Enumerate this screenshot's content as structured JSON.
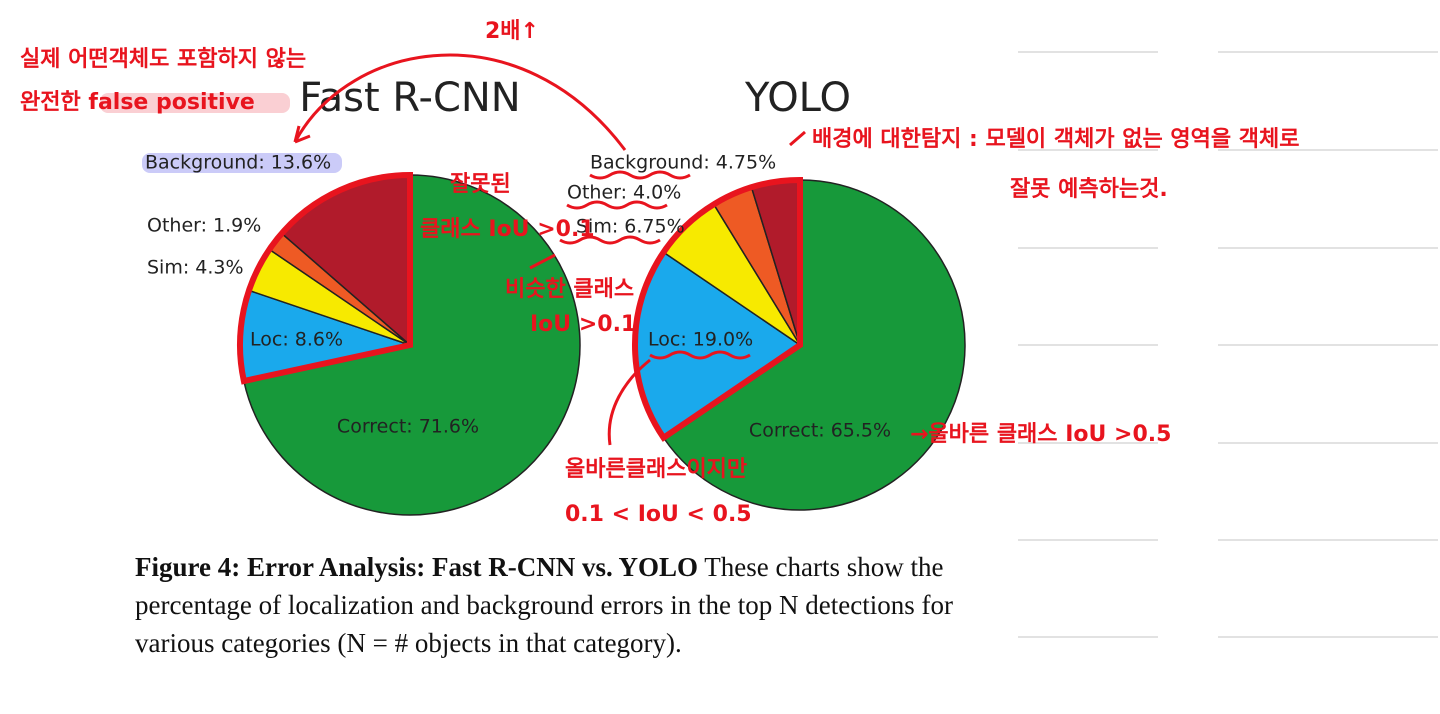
{
  "chart_data": [
    {
      "type": "pie",
      "title": "Fast R-CNN",
      "labels": [
        "Correct: 71.6%",
        "Loc: 8.6%",
        "Sim: 4.3%",
        "Other: 1.9%",
        "Background: 13.6%"
      ],
      "values": [
        71.6,
        8.6,
        4.3,
        1.9,
        13.6
      ],
      "colors": [
        "#17993a",
        "#1aa9ec",
        "#f7ea00",
        "#ee5a24",
        "#b11b2b"
      ]
    },
    {
      "type": "pie",
      "title": "YOLO",
      "labels": [
        "Correct: 65.5%",
        "Loc: 19.0%",
        "Sim: 6.75%",
        "Other: 4.0%",
        "Background: 4.75%"
      ],
      "values": [
        65.5,
        19.0,
        6.75,
        4.0,
        4.75
      ],
      "colors": [
        "#17993a",
        "#1aa9ec",
        "#f7ea00",
        "#ee5a24",
        "#b11b2b"
      ]
    }
  ],
  "caption": {
    "bold": "Figure 4:  Error Analysis: Fast R-CNN vs.  YOLO",
    "text": " These charts show the percentage of localization and background errors in the top N detections for various categories (N = # objects in that category)."
  },
  "notes": [
    "실제 어떤객체도 포함하지 않는",
    "완전한 false positive",
    "2배↑",
    "배경에 대한탐지 : 모델이 객체가 없는 영역을 객체로",
    "잘못 예측하는것.",
    "잘못된",
    "클래스 IoU >0.1",
    "비슷한 클래스",
    "IoU >0.1",
    "→올바른 클래스 IoU >0.5",
    "올바른클래스이지만",
    "0.1 < IoU < 0.5"
  ]
}
